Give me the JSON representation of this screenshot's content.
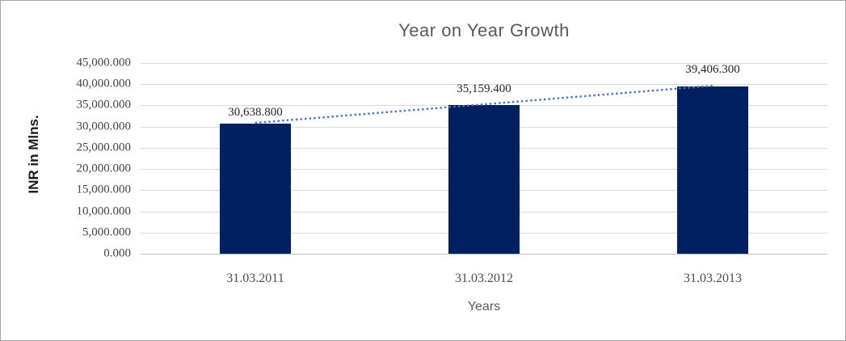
{
  "window": {
    "border_color": "#a6a6a6",
    "background": "#ffffff"
  },
  "chart_data": {
    "type": "bar",
    "title": "Year on Year Growth",
    "xlabel": "Years",
    "ylabel": "INR in Mlns.",
    "categories": [
      "31.03.2011",
      "31.03.2012",
      "31.03.2013"
    ],
    "values": [
      30638.8,
      35159.4,
      39406.3
    ],
    "data_labels": [
      "30,638.800",
      "35,159.400",
      "39,406.300"
    ],
    "y_ticks": [
      "45,000.000",
      "40,000.000",
      "35,000.000",
      "30,000.000",
      "25,000.000",
      "20,000.000",
      "15,000.000",
      "10,000.000",
      "5,000.000",
      "0.000"
    ],
    "y_tick_values": [
      45000,
      40000,
      35000,
      30000,
      25000,
      20000,
      15000,
      10000,
      5000,
      0
    ],
    "ylim": [
      0,
      45000
    ],
    "grid": true,
    "legend": false,
    "trendline": {
      "type": "linear",
      "style": "dotted",
      "color": "#4472c4"
    },
    "colors": {
      "bar": "#002060",
      "gridline": "#d9d9d9",
      "axis_line": "#bfbfbf",
      "title_text": "#595959",
      "tick_text": "#444444",
      "data_label_text": "#262626",
      "axis_title_text": "#1a1a1a"
    }
  }
}
